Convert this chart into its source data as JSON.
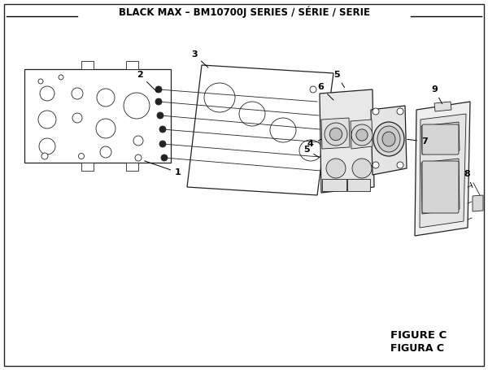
{
  "title": "BLACK MAX – BM10700J SERIES / SÉRIE / SERIE",
  "figure_label": "FIGURE C",
  "figura_label": "FIGURA C",
  "bg_color": "#ffffff",
  "border_color": "#000000",
  "title_fontsize": 8.5,
  "label_fontsize": 8.0,
  "figure_label_fontsize": 9.5
}
